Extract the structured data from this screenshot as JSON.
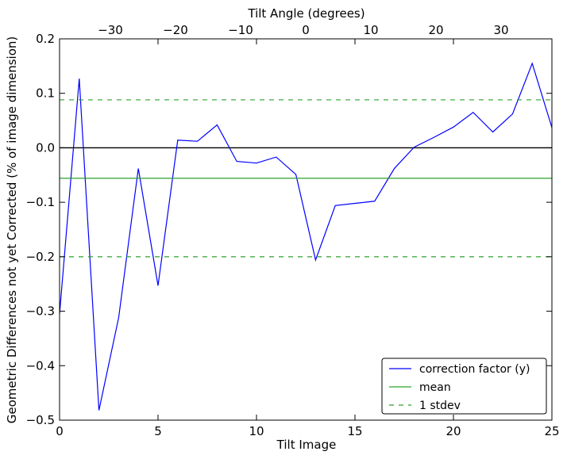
{
  "chart_data": {
    "type": "line",
    "title": "",
    "xlabel": "Tilt Image",
    "ylabel": "Geometric Differences not yet Corrected (% of image dimension)",
    "x2label": "Tilt Angle (degrees)",
    "xlim": [
      0,
      25
    ],
    "ylim": [
      -0.5,
      0.2
    ],
    "x2lim": [
      -37.8,
      37.8
    ],
    "xticks": [
      0,
      5,
      10,
      15,
      20,
      25
    ],
    "xtick_labels": [
      "0",
      "5",
      "10",
      "15",
      "20",
      "25"
    ],
    "yticks": [
      -0.5,
      -0.4,
      -0.3,
      -0.2,
      -0.1,
      0.0,
      0.1,
      0.2
    ],
    "ytick_labels": [
      "−0.5",
      "−0.4",
      "−0.3",
      "−0.2",
      "−0.1",
      "0.0",
      "0.1",
      "0.2"
    ],
    "x2ticks": [
      -30,
      -20,
      -10,
      0,
      10,
      20,
      30
    ],
    "x2tick_labels": [
      "−30",
      "−20",
      "−10",
      "0",
      "10",
      "20",
      "30"
    ],
    "grid": false,
    "legend_position": "lower-right",
    "zero_line": 0.0,
    "series": [
      {
        "name": "correction factor (y)",
        "color": "#0000ff",
        "style": "solid",
        "x": [
          0,
          1,
          2,
          3,
          4,
          5,
          6,
          7,
          8,
          9,
          10,
          11,
          12,
          13,
          14,
          15,
          16,
          17,
          18,
          19,
          20,
          21,
          22,
          23,
          24,
          25
        ],
        "y": [
          -0.305,
          0.127,
          -0.482,
          -0.312,
          -0.038,
          -0.253,
          0.014,
          0.012,
          0.042,
          -0.025,
          -0.028,
          -0.017,
          -0.049,
          -0.206,
          -0.106,
          -0.102,
          -0.098,
          -0.038,
          0.001,
          0.019,
          0.038,
          0.065,
          0.029,
          0.062,
          0.155,
          0.037
        ]
      },
      {
        "name": "mean",
        "color": "#2ca02c",
        "style": "solid",
        "x": [
          0,
          25
        ],
        "y": [
          -0.056,
          -0.056
        ]
      },
      {
        "name": "1 stdev",
        "color": "#2ca02c",
        "style": "dashed",
        "x": [
          0,
          25
        ],
        "y": [
          0.088,
          0.088
        ]
      },
      {
        "name": "",
        "color": "#2ca02c",
        "style": "dashed",
        "x": [
          0,
          25
        ],
        "y": [
          -0.2,
          -0.2
        ]
      }
    ]
  }
}
